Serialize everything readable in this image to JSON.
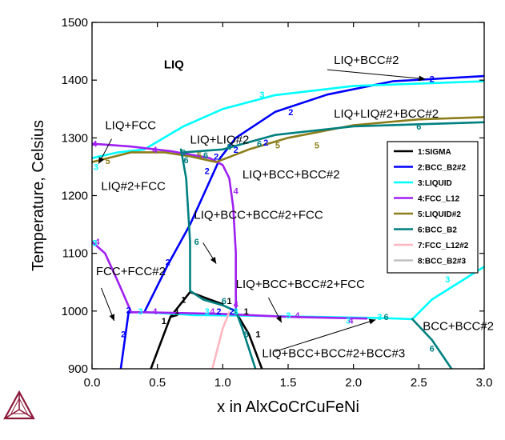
{
  "chart_data": {
    "type": "line",
    "title": "",
    "xlabel": "x in AlxCoCrCuFeNi",
    "ylabel": "Temperature, Celsius",
    "xlim": [
      0,
      3
    ],
    "ylim": [
      900,
      1500
    ],
    "xticks": [
      "0.0",
      "0.5",
      "1.0",
      "1.5",
      "2.0",
      "2.5",
      "3.0"
    ],
    "yticks": [
      "900",
      "1000",
      "1100",
      "1200",
      "1300",
      "1400",
      "1500"
    ],
    "grid": false,
    "legend_position": "right",
    "series": [
      {
        "name": "1:SIGMA",
        "color": "#000000",
        "segments": [
          [
            [
              0.45,
              900
            ],
            [
              0.6,
              990
            ],
            [
              0.75,
              1033
            ],
            [
              0.9,
              1020
            ],
            [
              1.0,
              1012
            ]
          ],
          [
            [
              0.6,
              990
            ],
            [
              0.65,
              993
            ]
          ],
          [
            [
              1.1,
              998
            ],
            [
              1.2,
              960
            ],
            [
              1.3,
              900
            ]
          ]
        ]
      },
      {
        "name": "2:BCC_B2#2",
        "color": "#0000ff",
        "segments": [
          [
            [
              0.22,
              900
            ],
            [
              0.28,
              998
            ],
            [
              0.4,
              998
            ]
          ],
          [
            [
              0.4,
              998
            ],
            [
              0.58,
              1080
            ],
            [
              0.75,
              1150
            ],
            [
              0.98,
              1265
            ]
          ],
          [
            [
              0.98,
              1265
            ],
            [
              1.1,
              1300
            ],
            [
              1.4,
              1345
            ],
            [
              1.8,
              1375
            ],
            [
              2.3,
              1398
            ],
            [
              3.0,
              1407
            ]
          ]
        ]
      },
      {
        "name": "3:LIQUID",
        "color": "#00ffff",
        "segments": [
          [
            [
              0,
              1265
            ],
            [
              0.2,
              1275
            ],
            [
              0.4,
              1280
            ],
            [
              0.7,
              1320
            ],
            [
              1.0,
              1350
            ],
            [
              1.4,
              1374
            ],
            [
              2.0,
              1390
            ],
            [
              3.0,
              1398
            ]
          ],
          [
            [
              0.4,
              998
            ],
            [
              0.8,
              993
            ],
            [
              1.2,
              992
            ],
            [
              1.7,
              990
            ],
            [
              2.2,
              988
            ],
            [
              2.45,
              986
            ]
          ],
          [
            [
              2.45,
              986
            ],
            [
              2.6,
              1020
            ],
            [
              3.0,
              1077
            ]
          ]
        ]
      },
      {
        "name": "4:FCC_L12",
        "color": "#a020f0",
        "segments": [
          [
            [
              0,
              1290
            ],
            [
              0.3,
              1285
            ],
            [
              0.6,
              1277
            ],
            [
              0.9,
              1265
            ],
            [
              1.0,
              1253
            ],
            [
              1.05,
              1230
            ],
            [
              1.08,
              1180
            ],
            [
              1.1,
              1100
            ],
            [
              1.1,
              1000
            ]
          ],
          [
            [
              0,
              1120
            ],
            [
              0.1,
              1100
            ],
            [
              0.2,
              1050
            ],
            [
              0.3,
              998
            ],
            [
              0.4,
              998
            ]
          ],
          [
            [
              0.4,
              998
            ],
            [
              1.0,
              995
            ],
            [
              1.5,
              990
            ],
            [
              2.1,
              987
            ]
          ]
        ]
      },
      {
        "name": "5:LIQUID#2",
        "color": "#8b7d1a",
        "segments": [
          [
            [
              0,
              1258
            ],
            [
              0.3,
              1275
            ],
            [
              0.55,
              1275
            ],
            [
              0.75,
              1268
            ],
            [
              0.95,
              1258
            ],
            [
              1.2,
              1280
            ],
            [
              1.5,
              1300
            ],
            [
              2.0,
              1322
            ],
            [
              2.5,
              1332
            ],
            [
              3.0,
              1336
            ]
          ]
        ]
      },
      {
        "name": "6:BCC_B2",
        "color": "#008080",
        "segments": [
          [
            [
              0.68,
              1280
            ],
            [
              0.72,
              1230
            ],
            [
              0.75,
              1120
            ],
            [
              0.75,
              1035
            ],
            [
              0.85,
              1020
            ],
            [
              1.0,
              1010
            ],
            [
              1.1,
              1000
            ]
          ],
          [
            [
              1.1,
              1000
            ],
            [
              1.15,
              970
            ],
            [
              1.25,
              900
            ]
          ],
          [
            [
              0.7,
              1275
            ],
            [
              1.0,
              1280
            ],
            [
              1.4,
              1305
            ],
            [
              2.0,
              1320
            ],
            [
              3.0,
              1327
            ]
          ],
          [
            [
              2.45,
              986
            ],
            [
              2.6,
              950
            ],
            [
              2.75,
              900
            ]
          ]
        ]
      },
      {
        "name": "7:FCC_L12#2",
        "color": "#ffb6c1",
        "segments": [
          [
            [
              0.92,
              900
            ],
            [
              1.0,
              970
            ],
            [
              1.05,
              998
            ]
          ]
        ]
      },
      {
        "name": "8:BCC_B2#3",
        "color": "#c0c0c0",
        "segments": []
      }
    ],
    "annotations": [
      {
        "text": "LIQ",
        "x": 0.55,
        "y": 1420,
        "bold": true
      },
      {
        "text": "LIQ+BCC#2",
        "x": 1.85,
        "y": 1428
      },
      {
        "text": "LIQ+LIQ#2+BCC#2",
        "x": 1.85,
        "y": 1335
      },
      {
        "text": "LIQ+FCC",
        "x": 0.1,
        "y": 1315
      },
      {
        "text": "LIQ+LIQ#2",
        "x": 0.75,
        "y": 1290
      },
      {
        "text": "LIQ+BCC+BCC#2",
        "x": 1.15,
        "y": 1230
      },
      {
        "text": "LIQ#2+FCC",
        "x": 0.07,
        "y": 1210
      },
      {
        "text": "LIQ+BCC+BCC#2+FCC",
        "x": 0.78,
        "y": 1160
      },
      {
        "text": "FCC+FCC#2",
        "x": 0.03,
        "y": 1062
      },
      {
        "text": "LIQ+BCC+BCC#2+FCC",
        "x": 1.1,
        "y": 1040
      },
      {
        "text": "BCC+BCC#2",
        "x": 2.53,
        "y": 967
      },
      {
        "text": "LIQ+BCC+BCC#2+BCC#3",
        "x": 1.3,
        "y": 920
      }
    ],
    "arrows": [
      {
        "from": [
          1.8,
          1418
        ],
        "to": [
          2.55,
          1402
        ]
      },
      {
        "from": [
          0.15,
          1298
        ],
        "to": [
          0.05,
          1255
        ]
      },
      {
        "from": [
          0.85,
          1118
        ],
        "to": [
          0.95,
          1082
        ]
      },
      {
        "from": [
          0.07,
          1040
        ],
        "to": [
          0.17,
          983
        ]
      },
      {
        "from": [
          1.35,
          1023
        ],
        "to": [
          1.45,
          980
        ]
      },
      {
        "from": [
          1.4,
          930
        ],
        "to": [
          2.17,
          985
        ]
      }
    ],
    "markers": [
      {
        "t": "3",
        "c": "#00ffff",
        "x": 1.3,
        "y": 1375
      },
      {
        "t": "2",
        "c": "#0000ff",
        "x": 2.6,
        "y": 1402
      },
      {
        "t": "2",
        "c": "#0000ff",
        "x": 1.52,
        "y": 1345
      },
      {
        "t": "6",
        "c": "#008080",
        "x": 2.5,
        "y": 1320
      },
      {
        "t": "4",
        "c": "#a020f0",
        "x": 0.02,
        "y": 1290
      },
      {
        "t": "3",
        "c": "#00ffff",
        "x": 0.03,
        "y": 1250
      },
      {
        "t": "5",
        "c": "#8b7d1a",
        "x": 0.12,
        "y": 1260
      },
      {
        "t": "4",
        "c": "#a020f0",
        "x": 0.48,
        "y": 1280
      },
      {
        "t": "6",
        "c": "#008080",
        "x": 0.7,
        "y": 1275
      },
      {
        "t": "6",
        "c": "#008080",
        "x": 0.72,
        "y": 1262
      },
      {
        "t": "5",
        "c": "#8b7d1a",
        "x": 0.82,
        "y": 1270
      },
      {
        "t": "6",
        "c": "#008080",
        "x": 0.87,
        "y": 1270
      },
      {
        "t": "2",
        "c": "#0000ff",
        "x": 0.95,
        "y": 1268
      },
      {
        "t": "2",
        "c": "#0000ff",
        "x": 0.88,
        "y": 1243
      },
      {
        "t": "6",
        "c": "#008080",
        "x": 1.05,
        "y": 1285
      },
      {
        "t": "2",
        "c": "#0000ff",
        "x": 1.1,
        "y": 1280
      },
      {
        "t": "6",
        "c": "#008080",
        "x": 1.28,
        "y": 1290
      },
      {
        "t": "2",
        "c": "#0000ff",
        "x": 1.33,
        "y": 1292
      },
      {
        "t": "5",
        "c": "#8b7d1a",
        "x": 1.42,
        "y": 1287
      },
      {
        "t": "5",
        "c": "#8b7d1a",
        "x": 1.72,
        "y": 1287
      },
      {
        "t": "4",
        "c": "#a020f0",
        "x": 1.1,
        "y": 1208
      },
      {
        "t": "6",
        "c": "#008080",
        "x": 0.8,
        "y": 1120
      },
      {
        "t": "2",
        "c": "#0000ff",
        "x": 0.58,
        "y": 1085
      },
      {
        "t": "4",
        "c": "#a020f0",
        "x": 0.04,
        "y": 1120
      },
      {
        "t": "3",
        "c": "#00ffff",
        "x": 0.02,
        "y": 1118
      },
      {
        "t": "2",
        "c": "#0000ff",
        "x": 0.28,
        "y": 1002
      },
      {
        "t": "3",
        "c": "#00ffff",
        "x": 0.37,
        "y": 1000
      },
      {
        "t": "4",
        "c": "#a020f0",
        "x": 0.48,
        "y": 1000
      },
      {
        "t": "1",
        "c": "#000000",
        "x": 0.7,
        "y": 1020
      },
      {
        "t": "1",
        "c": "#000000",
        "x": 0.65,
        "y": 1000
      },
      {
        "t": "1",
        "c": "#000000",
        "x": 0.55,
        "y": 983
      },
      {
        "t": "2",
        "c": "#0000ff",
        "x": 0.24,
        "y": 960
      },
      {
        "t": "3",
        "c": "#00ffff",
        "x": 0.88,
        "y": 1000
      },
      {
        "t": "4",
        "c": "#a020f0",
        "x": 0.92,
        "y": 1000
      },
      {
        "t": "2",
        "c": "#0000ff",
        "x": 0.97,
        "y": 1000
      },
      {
        "t": "6",
        "c": "#008080",
        "x": 1.01,
        "y": 1018
      },
      {
        "t": "1",
        "c": "#000000",
        "x": 1.05,
        "y": 1018
      },
      {
        "t": "4",
        "c": "#a020f0",
        "x": 1.1,
        "y": 1012
      },
      {
        "t": "2",
        "c": "#0000ff",
        "x": 1.07,
        "y": 1000
      },
      {
        "t": "3",
        "c": "#00ffff",
        "x": 1.1,
        "y": 1000
      },
      {
        "t": "1",
        "c": "#000000",
        "x": 1.18,
        "y": 1000
      },
      {
        "t": "6",
        "c": "#008080",
        "x": 1.18,
        "y": 960
      },
      {
        "t": "1",
        "c": "#000000",
        "x": 1.27,
        "y": 960
      },
      {
        "t": "3",
        "c": "#00ffff",
        "x": 1.5,
        "y": 993
      },
      {
        "t": "4",
        "c": "#a020f0",
        "x": 1.57,
        "y": 993
      },
      {
        "t": "3",
        "c": "#00ffff",
        "x": 1.96,
        "y": 984
      },
      {
        "t": "4",
        "c": "#a020f0",
        "x": 1.98,
        "y": 984
      },
      {
        "t": "3",
        "c": "#00ffff",
        "x": 2.2,
        "y": 990
      },
      {
        "t": "6",
        "c": "#008080",
        "x": 2.25,
        "y": 990
      },
      {
        "t": "3",
        "c": "#00ffff",
        "x": 2.72,
        "y": 1055
      },
      {
        "t": "6",
        "c": "#008080",
        "x": 2.6,
        "y": 935
      }
    ]
  }
}
